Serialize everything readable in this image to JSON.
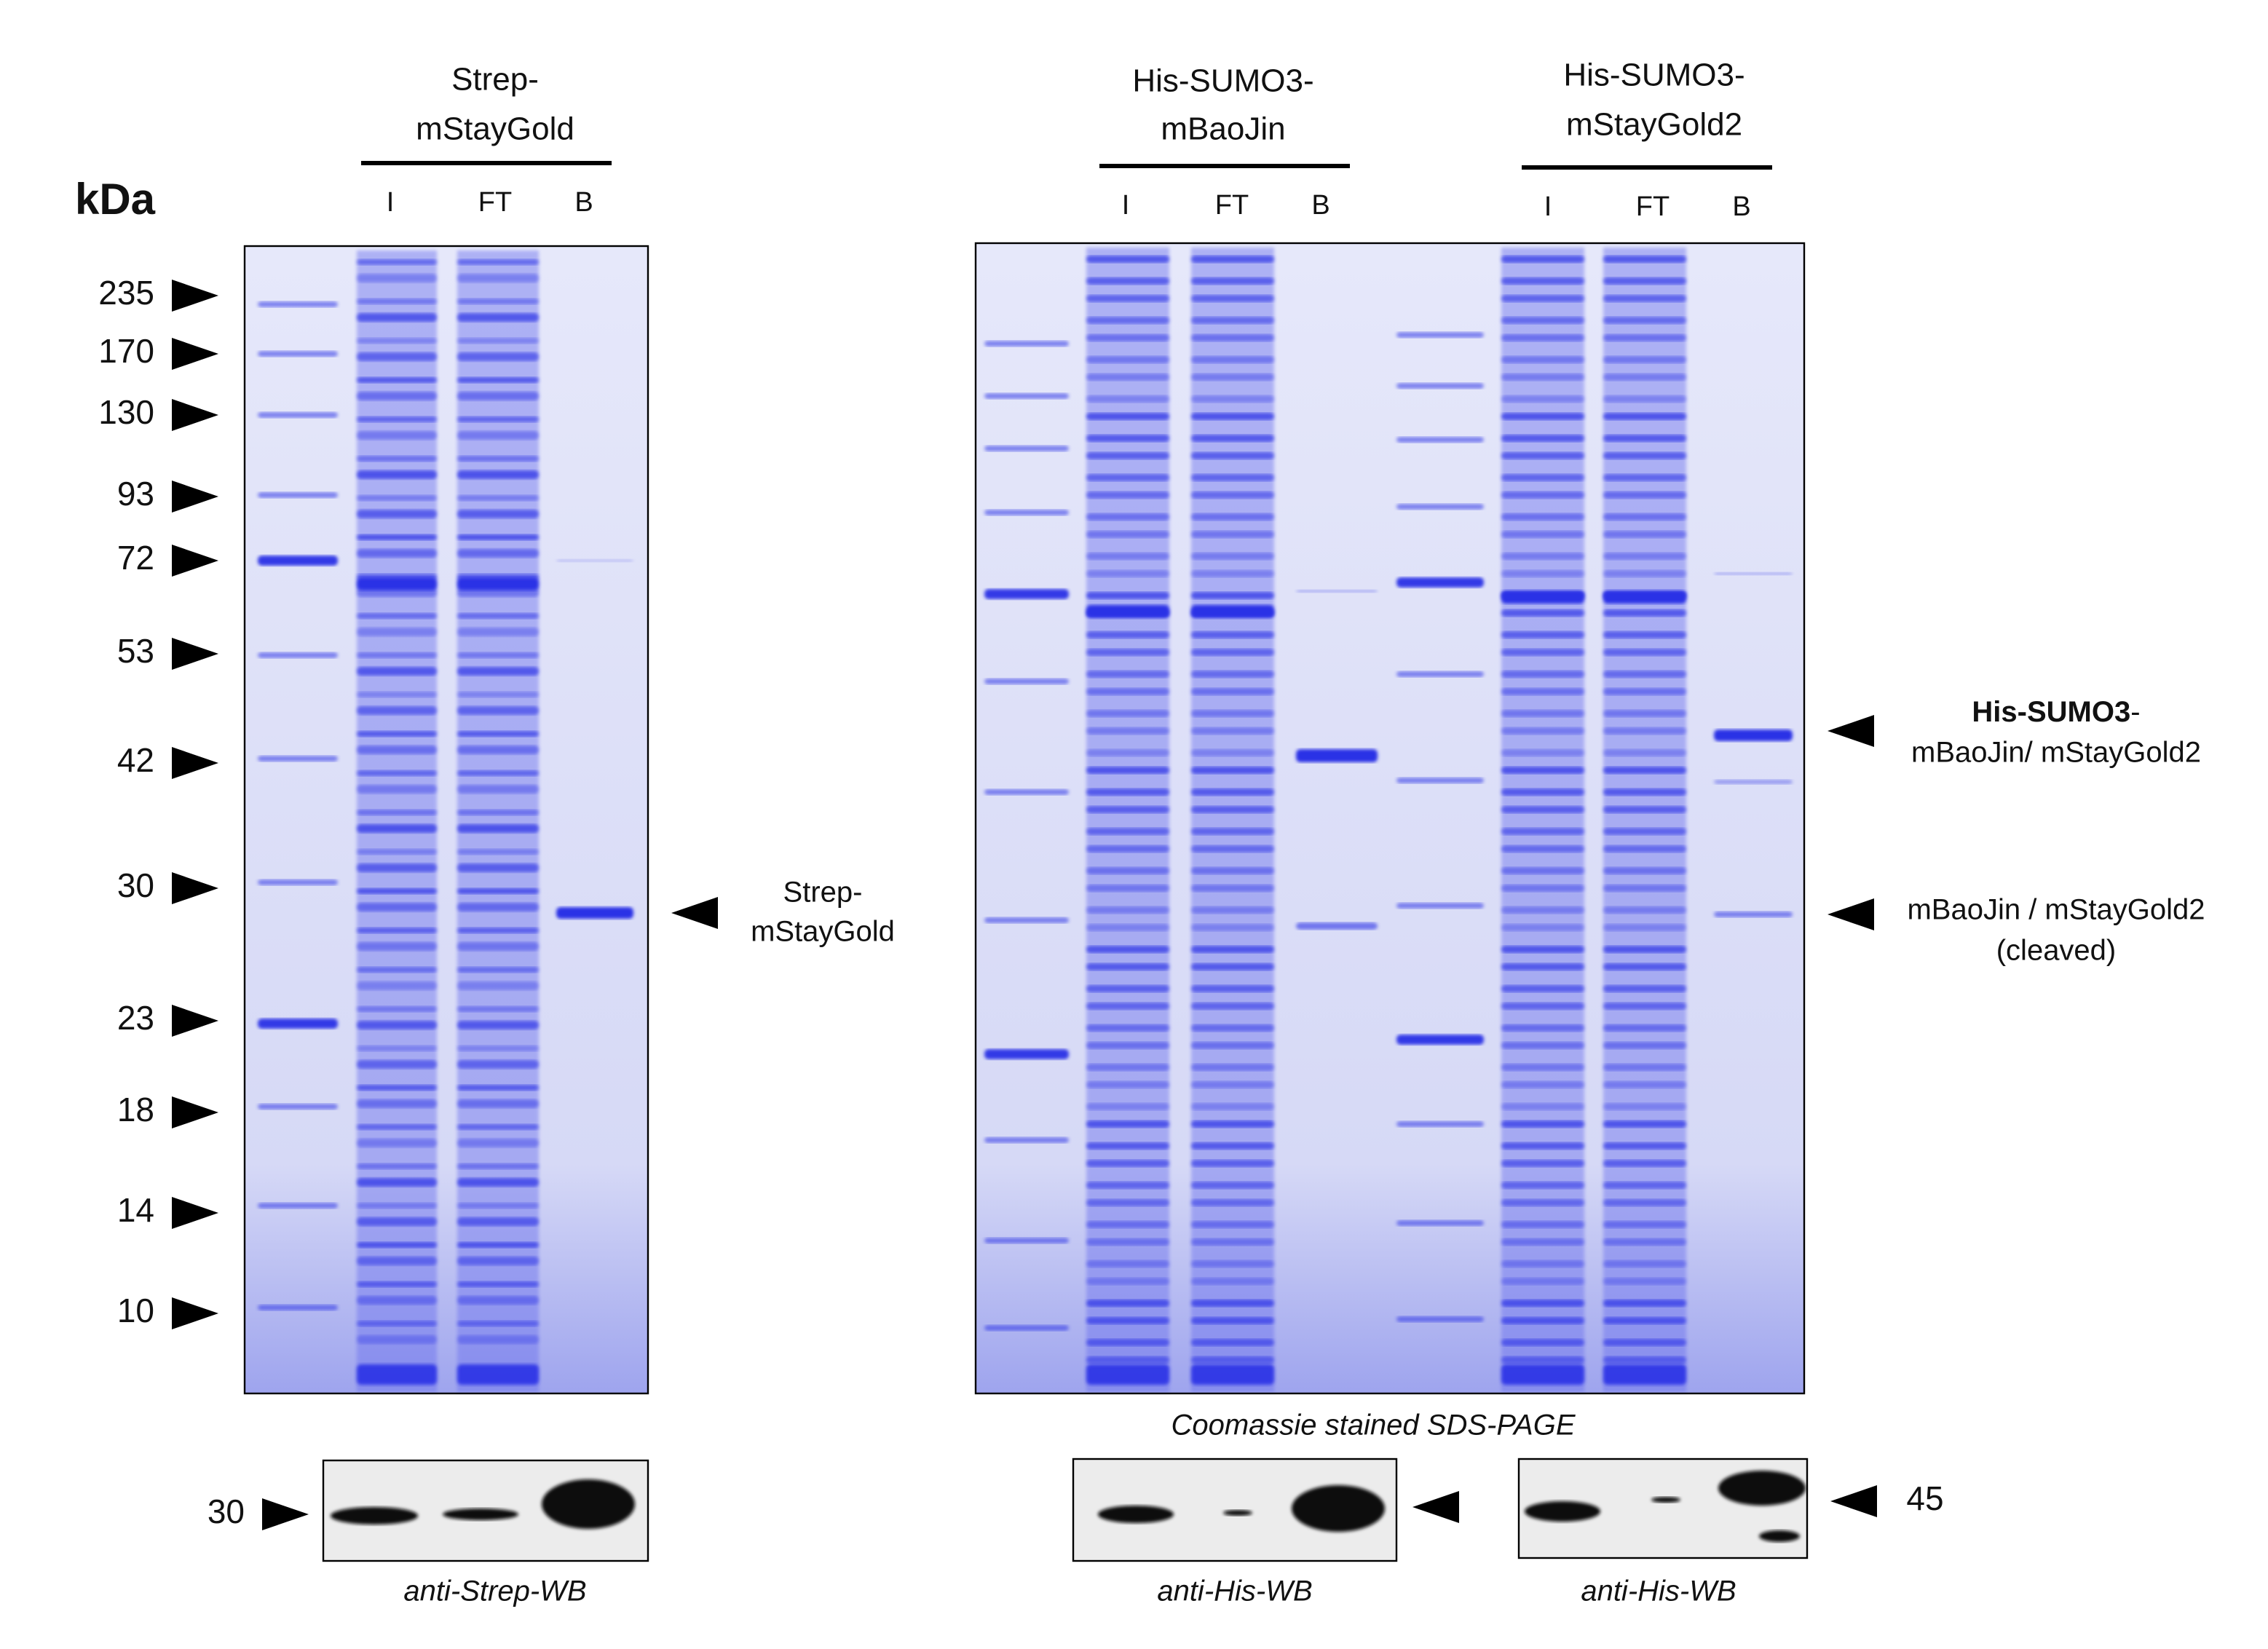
{
  "ladder": {
    "unit": "kDa",
    "markers": [
      235,
      170,
      130,
      93,
      72,
      53,
      42,
      30,
      23,
      18,
      14,
      10
    ]
  },
  "panels": [
    {
      "title": [
        "Strep-",
        "mStayGold"
      ],
      "lanes": [
        "I",
        "FT",
        "B"
      ]
    },
    {
      "title": [
        "His-SUMO3-",
        "mBaoJin"
      ],
      "lanes": [
        "I",
        "FT",
        "B"
      ]
    },
    {
      "title": [
        "His-SUMO3-",
        "mStayGold2"
      ],
      "lanes": [
        "I",
        "FT",
        "B"
      ]
    }
  ],
  "annotations": [
    {
      "lines": [
        "Strep-",
        "mStayGold"
      ]
    },
    {
      "bold": "His-SUMO3",
      "rest": "-",
      "lines": [
        "mBaoJin/ mStayGold2"
      ]
    },
    {
      "lines": [
        "mBaoJin / mStayGold2",
        "(cleaved)"
      ]
    }
  ],
  "caption": "Coomassie stained SDS-PAGE",
  "western_blots": [
    {
      "marker": 30,
      "label": "anti-Strep-WB"
    },
    {
      "label": "anti-His-WB"
    },
    {
      "marker": 45,
      "label": "anti-His-WB"
    }
  ]
}
